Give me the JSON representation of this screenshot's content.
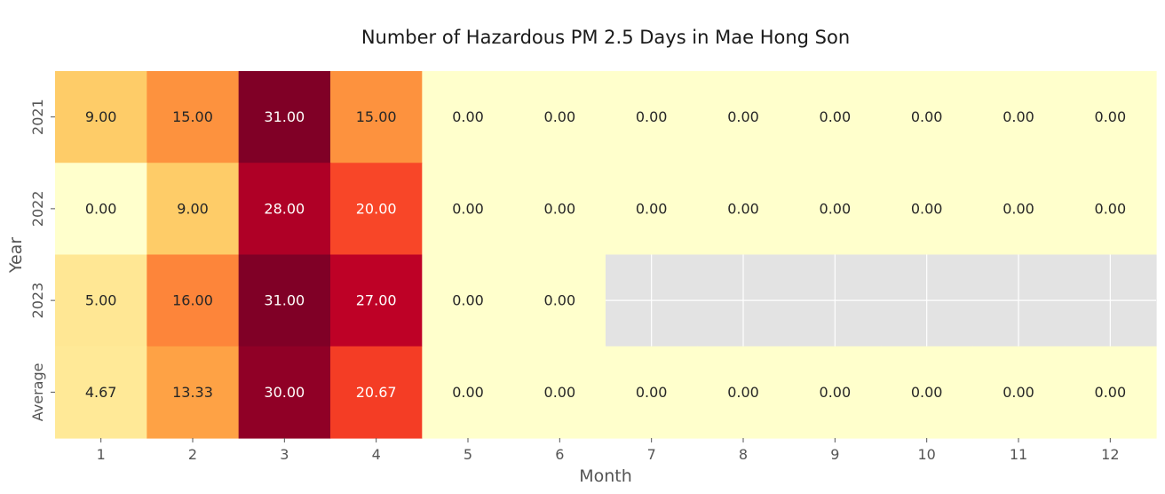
{
  "chart_data": {
    "type": "heatmap",
    "title": "Number of Hazardous PM 2.5 Days in Mae Hong Son",
    "xlabel": "Month",
    "ylabel": "Year",
    "x_categories": [
      "1",
      "2",
      "3",
      "4",
      "5",
      "6",
      "7",
      "8",
      "9",
      "10",
      "11",
      "12"
    ],
    "y_categories": [
      "2021",
      "2022",
      "2023",
      "Average"
    ],
    "values": [
      [
        9.0,
        15.0,
        31.0,
        15.0,
        0.0,
        0.0,
        0.0,
        0.0,
        0.0,
        0.0,
        0.0,
        0.0
      ],
      [
        0.0,
        9.0,
        28.0,
        20.0,
        0.0,
        0.0,
        0.0,
        0.0,
        0.0,
        0.0,
        0.0,
        0.0
      ],
      [
        5.0,
        16.0,
        31.0,
        27.0,
        0.0,
        0.0,
        null,
        null,
        null,
        null,
        null,
        null
      ],
      [
        4.67,
        13.33,
        30.0,
        20.67,
        0.0,
        0.0,
        0.0,
        0.0,
        0.0,
        0.0,
        0.0,
        0.0
      ]
    ],
    "value_format": "2 decimals",
    "color_range": [
      0,
      31
    ],
    "colormap": "YlOrRd",
    "missing_color": "#e3e3e3",
    "grid": false,
    "colorbar": false
  }
}
